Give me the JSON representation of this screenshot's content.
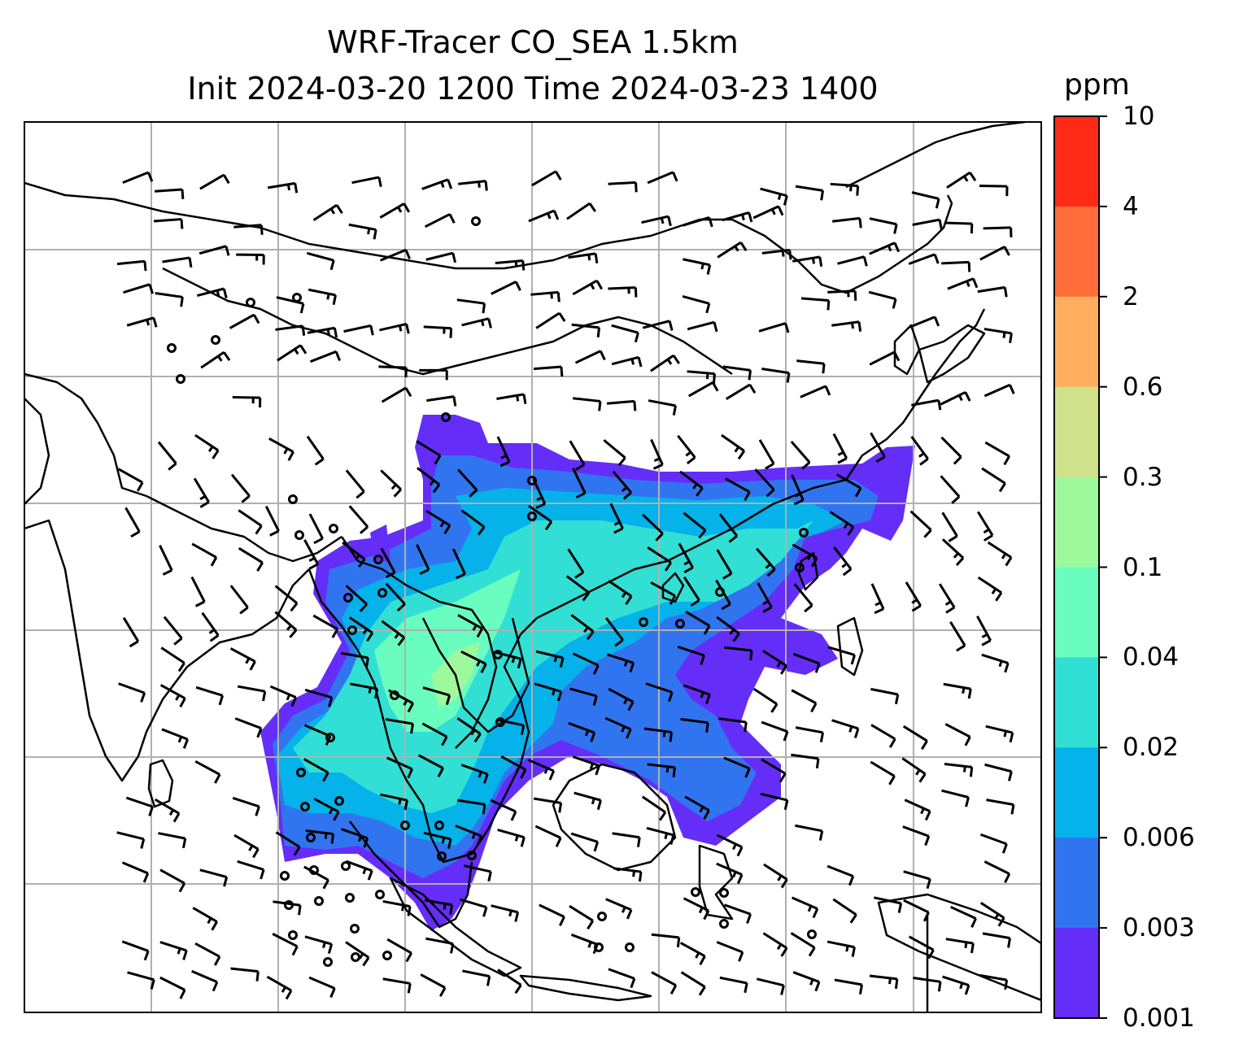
{
  "title": {
    "line1": "WRF-Tracer CO_SEA 1.5km",
    "line2": "Init 2024-03-20 1200 Time 2024-03-23 1400"
  },
  "colorbar": {
    "units": "ppm",
    "levels": [
      "10",
      "4",
      "2",
      "0.6",
      "0.3",
      "0.1",
      "0.04",
      "0.02",
      "0.006",
      "0.003",
      "0.001"
    ],
    "colors": [
      "#ff2a15",
      "#ff6e3a",
      "#ffae5f",
      "#cfe18a",
      "#9ef99c",
      "#6afdc0",
      "#32dfd4",
      "#05b2ea",
      "#3174f0",
      "#652df8"
    ]
  },
  "map": {
    "variable": "CO tracer concentration",
    "gridlines": true,
    "wind_barbs": true
  }
}
